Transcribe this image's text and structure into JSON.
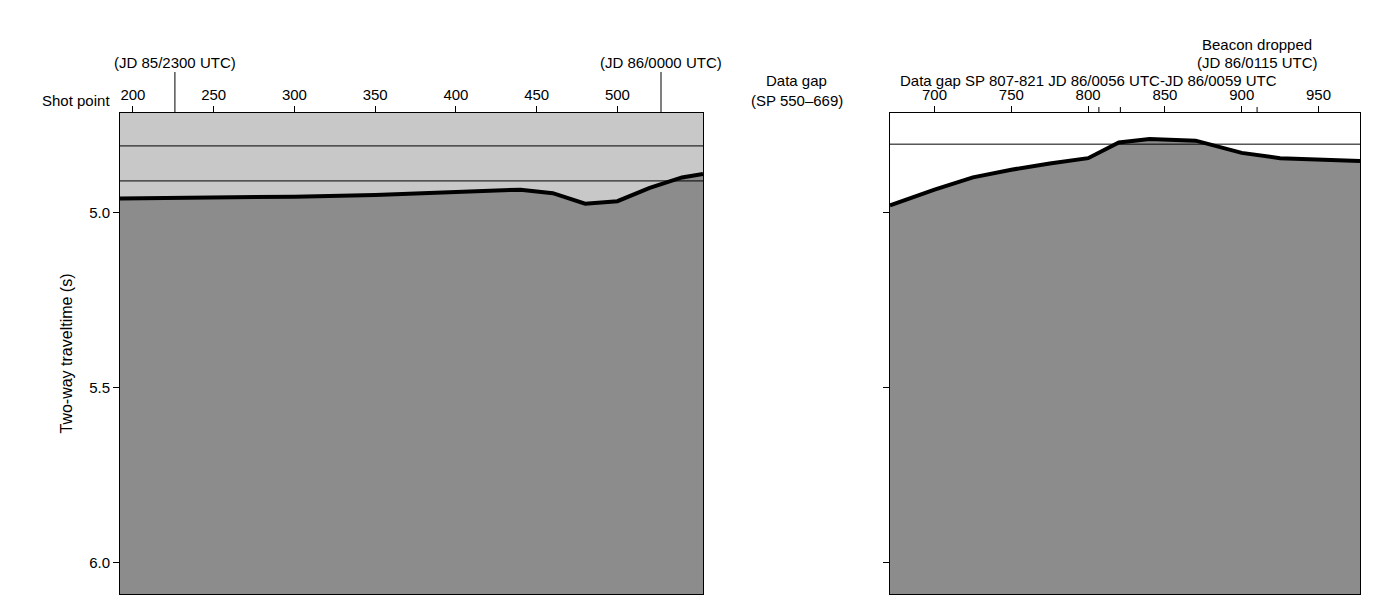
{
  "chart_data": [
    {
      "type": "line",
      "x_title": "Shot point",
      "y_title": "Two-way traveltime (s)",
      "x": [
        192,
        250,
        300,
        350,
        400,
        440,
        460,
        480,
        500,
        520,
        540,
        553
      ],
      "values": [
        4.96,
        4.958,
        4.955,
        4.95,
        4.943,
        4.935,
        4.945,
        4.975,
        4.968,
        4.93,
        4.9,
        4.89
      ],
      "color": "#000000",
      "xlim": [
        192,
        553
      ],
      "ylim": [
        6.09,
        4.716
      ],
      "xticks": [
        200,
        250,
        300,
        350,
        400,
        450,
        500
      ],
      "yticks": [
        {
          "value": 5,
          "label": "5.0"
        },
        {
          "value": 5.5,
          "label": "5.5"
        },
        {
          "value": 6,
          "label": "6.0"
        }
      ],
      "hlines": [
        4.81,
        4.91
      ],
      "marks": [
        226,
        527
      ],
      "annotations": [
        {
          "text": "(JD 85/2300 UTC)",
          "x": 226
        },
        {
          "text": "(JD 86/0000 UTC)",
          "x": 527
        }
      ]
    },
    {
      "type": "line",
      "x": [
        671,
        700,
        725,
        750,
        775,
        800,
        820,
        840,
        870,
        900,
        925,
        950,
        977
      ],
      "values": [
        4.98,
        4.935,
        4.9,
        4.878,
        4.86,
        4.845,
        4.8,
        4.79,
        4.795,
        4.83,
        4.845,
        4.85,
        4.853
      ],
      "color": "#000000",
      "xlim": [
        671,
        977
      ],
      "ylim": [
        6.09,
        4.716
      ],
      "xticks": [
        700,
        750,
        800,
        850,
        900,
        950
      ],
      "yticks": [
        5,
        5.5,
        6
      ],
      "tick_labels": "x",
      "hlines": [
        4.805
      ],
      "marks": [
        807,
        821,
        910
      ],
      "annotations": [
        {
          "text": "Data gap SP 807-821 JD 86/0056 UTC-JD 86/0059 UTC",
          "x": 800
        },
        {
          "text": "(JD 86/0115 UTC)",
          "x": 910
        },
        {
          "text": "Beacon dropped",
          "x": 910
        }
      ]
    }
  ],
  "between_label": [
    "Data gap",
    "(SP 550–669)"
  ]
}
